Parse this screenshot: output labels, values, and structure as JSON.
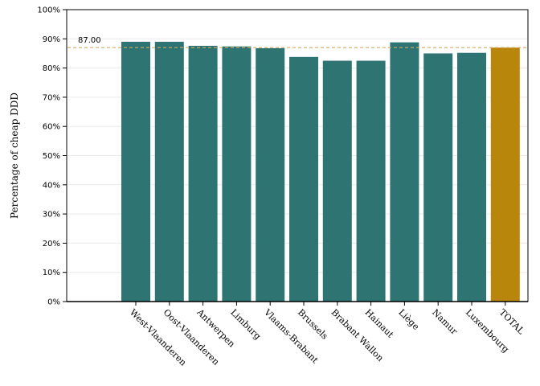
{
  "chart_data": {
    "type": "bar",
    "title": "",
    "xlabel": "",
    "ylabel": "Percentage of cheap DDD",
    "ylim": [
      0,
      100
    ],
    "yticks": [
      "0%",
      "10%",
      "20%",
      "30%",
      "40%",
      "50%",
      "60%",
      "70%",
      "80%",
      "90%",
      "100%"
    ],
    "categories": [
      "West-Vlaanderen",
      "Oost-Vlaanderen",
      "Antwerpen",
      "Limburg",
      "Vlaams-Brabant",
      "Brussels",
      "Brabant Wallon",
      "Hainaut",
      "Liège",
      "Namur",
      "Luxembourg",
      "TOTAL"
    ],
    "values": [
      89.0,
      89.0,
      87.6,
      87.4,
      86.8,
      83.8,
      82.5,
      82.5,
      88.8,
      85.0,
      85.2,
      87.0
    ],
    "grid": true,
    "colors": {
      "bar": "#2e7472",
      "total_bar": "#b8860b",
      "reference_line": "#d9a760"
    },
    "reference_line": {
      "value": 87.0,
      "label": "87.00"
    }
  }
}
